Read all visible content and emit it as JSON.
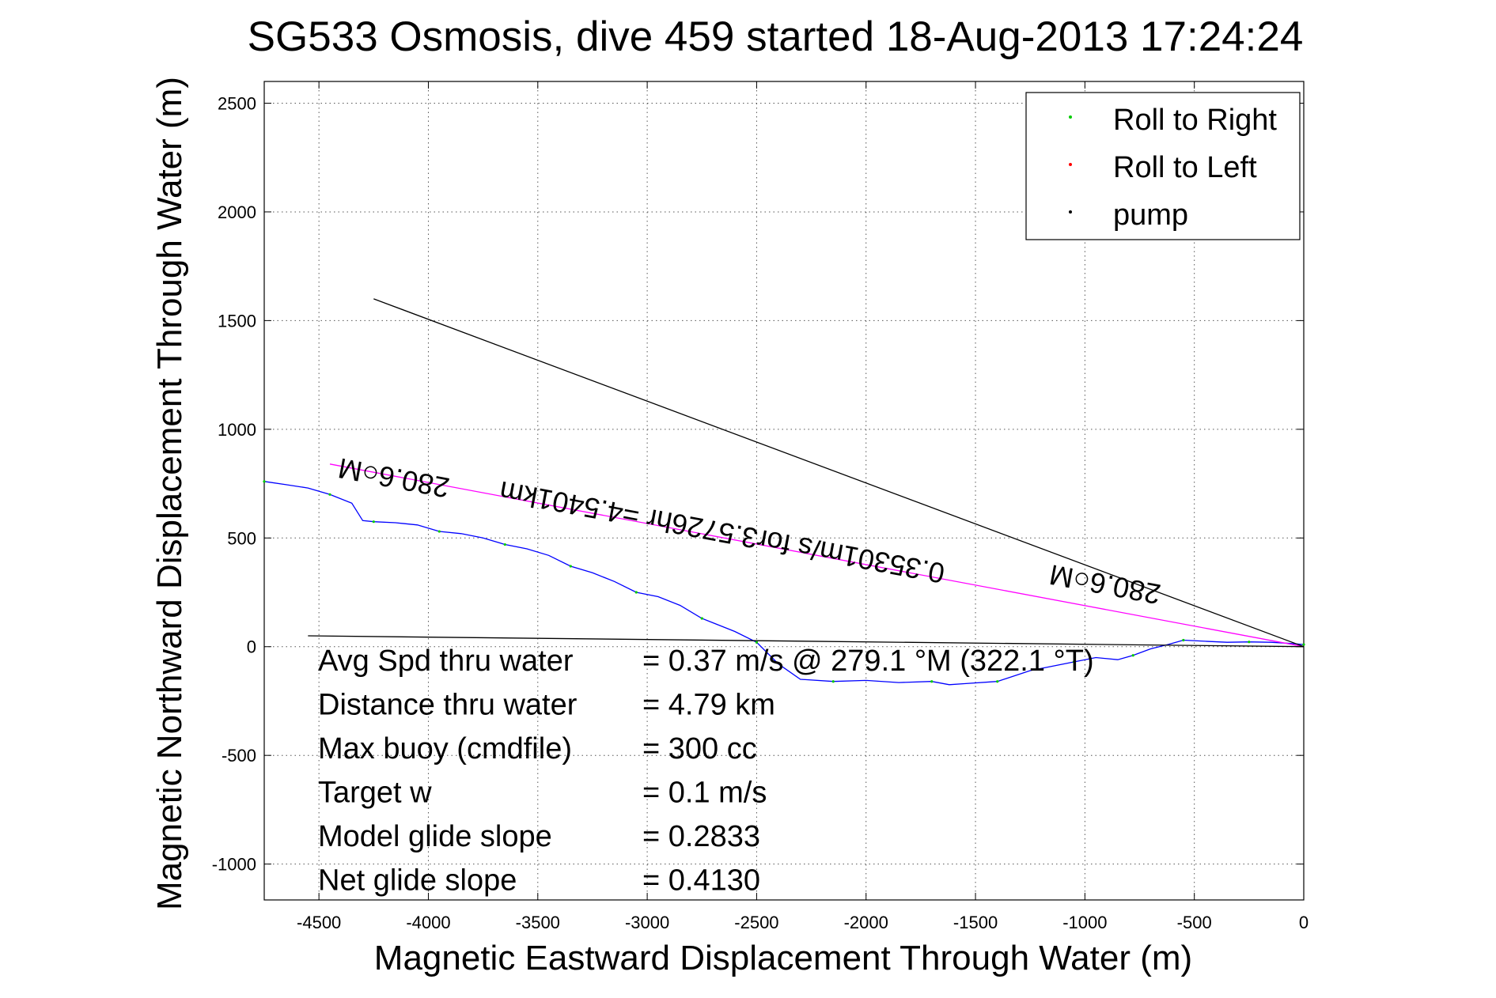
{
  "chart_data": {
    "type": "line",
    "title": "SG533 Osmosis, dive 459 started 18-Aug-2013 17:24:24",
    "xlabel": "Magnetic Eastward Displacement Through Water (m)",
    "ylabel": "Magnetic Northward Displacement Through Water (m)",
    "xlim": [
      -4750,
      0
    ],
    "ylim": [
      -1165,
      2600
    ],
    "grid": true,
    "legend_position": "top-right",
    "x_ticks": [
      -4500,
      -4000,
      -3500,
      -3000,
      -2500,
      -2000,
      -1500,
      -1000,
      -500,
      0
    ],
    "x_tick_labels": [
      "-4500",
      "-4000",
      "-3500",
      "-3000",
      "-2500",
      "-2000",
      "-1500",
      "-1000",
      "-500",
      "0"
    ],
    "y_ticks": [
      -1000,
      -500,
      0,
      500,
      1000,
      1500,
      2000,
      2500
    ],
    "y_tick_labels": [
      "-1000",
      "-500",
      "0",
      "500",
      "1000",
      "1500",
      "2000",
      "2500"
    ],
    "legend": [
      {
        "label": "Roll to Right",
        "color": "#00cc00"
      },
      {
        "label": "Roll to Left",
        "color": "#ff0000"
      },
      {
        "label": "pump",
        "color": "#000000"
      }
    ],
    "series": [
      {
        "color": "#0000ff",
        "x": [
          0,
          -60,
          -150,
          -250,
          -350,
          -450,
          -550,
          -620,
          -700,
          -780,
          -850,
          -950,
          -1050,
          -1150,
          -1250,
          -1400,
          -1550,
          -1620,
          -1700,
          -1850,
          -2000,
          -2150,
          -2300,
          -2400,
          -2500,
          -2600,
          -2700,
          -2750,
          -2850,
          -2950,
          -3050,
          -3150,
          -3250,
          -3350,
          -3450,
          -3550,
          -3650,
          -3750,
          -3850,
          -3950,
          -4050,
          -4150,
          -4250,
          -4300,
          -4350,
          -4450,
          -4550,
          -4650,
          -4750
        ],
        "y": [
          10,
          15,
          20,
          22,
          20,
          25,
          30,
          10,
          -10,
          -40,
          -60,
          -50,
          -70,
          -90,
          -110,
          -160,
          -170,
          -175,
          -160,
          -165,
          -155,
          -160,
          -150,
          -80,
          20,
          70,
          110,
          130,
          190,
          230,
          250,
          300,
          340,
          370,
          420,
          450,
          470,
          500,
          520,
          530,
          560,
          570,
          575,
          580,
          660,
          700,
          730,
          745,
          760
        ]
      },
      {
        "color": "#ff00ff",
        "x": [
          0,
          -4450
        ],
        "y": [
          0,
          840
        ]
      },
      {
        "color": "#000000",
        "x": [
          0,
          -4250
        ],
        "y": [
          0,
          1600
        ]
      },
      {
        "color": "#000000",
        "x": [
          0,
          -4550
        ],
        "y": [
          0,
          50
        ]
      }
    ],
    "annotations": [
      {
        "text": "280.6○M",
        "x": -4150,
        "y": 820,
        "angle_deg": 190.6
      },
      {
        "text": "0.35301m/s for3.5726hr =4.5401km",
        "x": -2650,
        "y": 570,
        "angle_deg": 190.6
      },
      {
        "text": "280.6○M",
        "x": -900,
        "y": 330,
        "angle_deg": 190.6
      }
    ],
    "stats": [
      {
        "label": "Avg Spd thru water",
        "value": "=  0.37 m/s @ 279.1 °M (322.1 °T)"
      },
      {
        "label": "Distance thru water",
        "value": "=  4.79 km"
      },
      {
        "label": "Max buoy (cmdfile)",
        "value": "= 300 cc"
      },
      {
        "label": "Target w",
        "value": "= 0.1 m/s"
      },
      {
        "label": "Model glide slope",
        "value": "= 0.2833"
      },
      {
        "label": "Net glide slope",
        "value": "= 0.4130"
      }
    ]
  }
}
